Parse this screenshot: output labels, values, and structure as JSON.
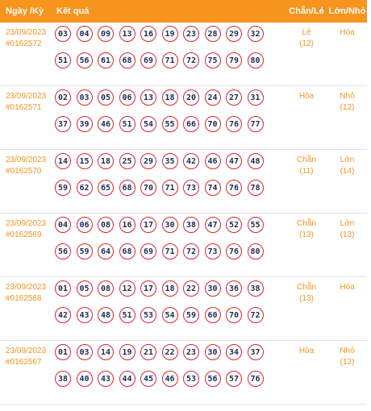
{
  "header": {
    "date_label": "Ngày /Kỳ",
    "result_label": "Kết quả",
    "parity_label": "Chẵn/Lẻ",
    "size_label": "Lớn/Nhỏ"
  },
  "rows": [
    {
      "date": "23/09/2023",
      "id": "#0162572",
      "balls": [
        "03",
        "04",
        "09",
        "13",
        "16",
        "19",
        "23",
        "28",
        "29",
        "32",
        "51",
        "56",
        "61",
        "68",
        "69",
        "71",
        "72",
        "75",
        "79",
        "80"
      ],
      "parity": "Lẻ",
      "parity_count": "(12)",
      "size": "Hòa",
      "size_count": ""
    },
    {
      "date": "23/09/2023",
      "id": "#0162571",
      "balls": [
        "02",
        "03",
        "05",
        "06",
        "13",
        "18",
        "20",
        "24",
        "27",
        "31",
        "37",
        "39",
        "46",
        "51",
        "54",
        "55",
        "66",
        "70",
        "76",
        "77"
      ],
      "parity": "Hòa",
      "parity_count": "",
      "size": "Nhỏ",
      "size_count": "(12)"
    },
    {
      "date": "23/09/2023",
      "id": "#0162570",
      "balls": [
        "14",
        "15",
        "18",
        "25",
        "29",
        "35",
        "42",
        "46",
        "47",
        "48",
        "59",
        "62",
        "65",
        "68",
        "70",
        "71",
        "73",
        "74",
        "76",
        "78"
      ],
      "parity": "Chẵn",
      "parity_count": "(11)",
      "size": "Lớn",
      "size_count": "(14)"
    },
    {
      "date": "23/09/2023",
      "id": "#0162569",
      "balls": [
        "04",
        "06",
        "08",
        "16",
        "17",
        "30",
        "38",
        "47",
        "52",
        "55",
        "56",
        "59",
        "64",
        "68",
        "69",
        "71",
        "72",
        "73",
        "76",
        "80"
      ],
      "parity": "Chẵn",
      "parity_count": "(13)",
      "size": "Lớn",
      "size_count": "(13)"
    },
    {
      "date": "23/09/2023",
      "id": "#0162568",
      "balls": [
        "01",
        "05",
        "08",
        "12",
        "17",
        "18",
        "22",
        "30",
        "36",
        "38",
        "42",
        "43",
        "48",
        "51",
        "53",
        "54",
        "59",
        "60",
        "70",
        "72"
      ],
      "parity": "Chẵn",
      "parity_count": "(13)",
      "size": "Hòa",
      "size_count": ""
    },
    {
      "date": "23/09/2023",
      "id": "#0162567",
      "balls": [
        "01",
        "03",
        "14",
        "19",
        "21",
        "22",
        "23",
        "30",
        "34",
        "37",
        "38",
        "40",
        "43",
        "44",
        "45",
        "46",
        "53",
        "56",
        "57",
        "76"
      ],
      "parity": "Hòa",
      "parity_count": "",
      "size": "Nhỏ",
      "size_count": "(12)"
    }
  ],
  "colors": {
    "accent": "#f7941d",
    "ball_border": "#d7262f",
    "ball_text": "#1e2a55"
  }
}
